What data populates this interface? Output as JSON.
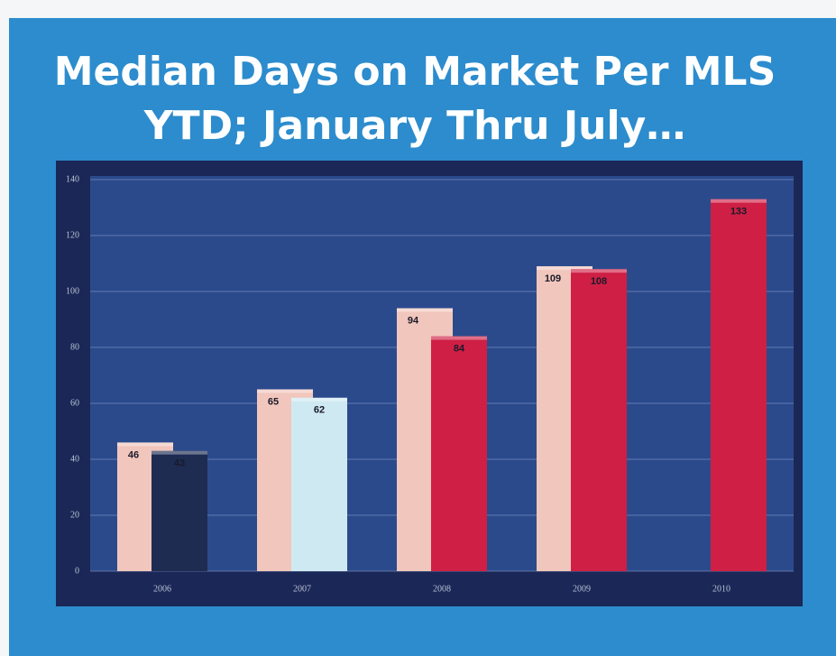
{
  "chart_data": {
    "type": "bar",
    "title": "Median Days on Market Per MLS YTD; January Thru July…",
    "categories": [
      "2006",
      "2007",
      "2008",
      "2009",
      "2010"
    ],
    "series": [
      {
        "color": "#f1c6bd",
        "values": [
          46,
          65,
          94,
          109,
          null
        ]
      },
      {
        "colors": [
          "#1e2c52",
          "#cfe9f2",
          "#cf1f45",
          "#cf1f45",
          "#cf1f45"
        ],
        "values": [
          43,
          62,
          84,
          108,
          133
        ]
      }
    ],
    "ylim": [
      0,
      140
    ],
    "yticks": [
      0,
      20,
      40,
      60,
      80,
      100,
      120,
      140
    ],
    "grid": true
  }
}
